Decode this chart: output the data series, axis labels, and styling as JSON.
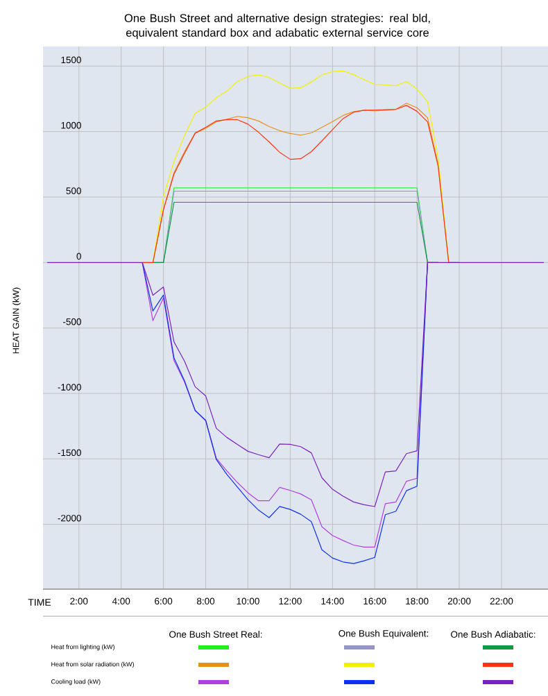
{
  "chart_data": {
    "type": "line",
    "title": "One Bush Street and alternative design strategies: real bld, equivalent standard box and adabatic external service core",
    "xlabel": "TIME",
    "ylabel": "HEAT GAIN (kW)",
    "annotations": [
      "One Bush Street Real:",
      "One Bush Equivalent:",
      "One Bush Adiabatic:",
      "Heat from lighting (kW)",
      "Heat from solar radiation (kW)",
      "Cooling load (kW)"
    ],
    "x": [
      0.5,
      1,
      1.5,
      2,
      2.5,
      3,
      3.5,
      4,
      4.5,
      5,
      5.5,
      6,
      6.5,
      7,
      7.5,
      8,
      8.5,
      9,
      9.5,
      10,
      10.5,
      11,
      11.5,
      12,
      12.5,
      13,
      13.5,
      14,
      14.5,
      15,
      15.5,
      16,
      16.5,
      17,
      17.5,
      18,
      18.5,
      19,
      19.5,
      20,
      20.5,
      21,
      21.5,
      22,
      22.5,
      23,
      23.5,
      24
    ],
    "series": [
      {
        "color": "#22ee22",
        "values": [
          null,
          null,
          null,
          null,
          null,
          null,
          null,
          null,
          null,
          null,
          0,
          0,
          570,
          570,
          570,
          570,
          570,
          570,
          570,
          570,
          570,
          570,
          570,
          570,
          570,
          570,
          570,
          570,
          570,
          570,
          570,
          570,
          570,
          570,
          570,
          570,
          0,
          0,
          null,
          null,
          null,
          null,
          null,
          null,
          null,
          null,
          null,
          null
        ]
      },
      {
        "color": "#e8901c",
        "values": [
          null,
          null,
          null,
          null,
          null,
          null,
          null,
          null,
          null,
          0,
          0,
          404,
          687,
          847,
          988,
          1025,
          1074,
          1094,
          1116,
          1106,
          1081,
          1039,
          1007,
          985,
          973,
          990,
          1032,
          1076,
          1123,
          1153,
          1163,
          1158,
          1163,
          1170,
          1217,
          1182,
          1106,
          749,
          0,
          0,
          null,
          null,
          null,
          null,
          null,
          null,
          null,
          null
        ]
      },
      {
        "color": "#b040e0",
        "values": [
          null,
          null,
          null,
          null,
          null,
          null,
          null,
          null,
          null,
          0,
          -444,
          -271,
          -750,
          -914,
          -1130,
          -1204,
          -1495,
          -1592,
          -1680,
          -1759,
          -1820,
          -1820,
          -1718,
          -1741,
          -1768,
          -1812,
          -2018,
          -2085,
          -2123,
          -2158,
          -2173,
          -2173,
          -1842,
          -1829,
          -1671,
          -1648,
          0,
          null,
          null,
          null,
          null,
          null,
          null,
          null,
          null,
          null,
          null,
          null
        ]
      },
      {
        "color": "#9494c8",
        "values": [
          null,
          null,
          null,
          null,
          null,
          null,
          null,
          null,
          null,
          null,
          0,
          0,
          545,
          545,
          545,
          545,
          545,
          545,
          545,
          545,
          545,
          545,
          545,
          545,
          545,
          545,
          545,
          545,
          545,
          545,
          545,
          545,
          545,
          545,
          545,
          545,
          0,
          0,
          null,
          null,
          null,
          null,
          null,
          null,
          null,
          null,
          null,
          null
        ]
      },
      {
        "color": "#f5f000",
        "values": [
          null,
          null,
          null,
          null,
          null,
          null,
          null,
          null,
          null,
          0,
          0,
          500,
          773,
          970,
          1138,
          1187,
          1259,
          1310,
          1384,
          1421,
          1433,
          1414,
          1372,
          1330,
          1335,
          1379,
          1433,
          1458,
          1463,
          1436,
          1397,
          1360,
          1357,
          1350,
          1382,
          1325,
          1229,
          798,
          0,
          0,
          null,
          null,
          null,
          null,
          null,
          null,
          null,
          null
        ]
      },
      {
        "color": "#1030f0",
        "values": [
          null,
          null,
          null,
          null,
          null,
          null,
          null,
          null,
          null,
          0,
          -370,
          -248,
          -729,
          -905,
          -1130,
          -1208,
          -1504,
          -1618,
          -1715,
          -1812,
          -1891,
          -1949,
          -1863,
          -1886,
          -1923,
          -1979,
          -2194,
          -2257,
          -2287,
          -2299,
          -2278,
          -2252,
          -1926,
          -1900,
          -1743,
          -1709,
          0,
          null,
          null,
          null,
          null,
          null,
          null,
          null,
          null,
          null,
          null,
          null
        ]
      },
      {
        "color": "#119944",
        "values": [
          null,
          null,
          null,
          null,
          null,
          null,
          null,
          null,
          null,
          null,
          0,
          0,
          460,
          460,
          460,
          460,
          460,
          460,
          460,
          460,
          460,
          460,
          460,
          460,
          460,
          460,
          460,
          460,
          460,
          460,
          460,
          460,
          460,
          460,
          460,
          460,
          0,
          0,
          null,
          null,
          null,
          null,
          null,
          null,
          null,
          null,
          null,
          null
        ]
      },
      {
        "color": "#ff3311",
        "values": [
          null,
          null,
          null,
          null,
          null,
          null,
          null,
          null,
          null,
          0,
          0,
          404,
          675,
          835,
          988,
          1032,
          1081,
          1091,
          1091,
          1057,
          995,
          921,
          842,
          788,
          793,
          847,
          929,
          1015,
          1099,
          1148,
          1163,
          1165,
          1167,
          1170,
          1200,
          1155,
          1074,
          736,
          0,
          0,
          null,
          null,
          null,
          null,
          null,
          null,
          null,
          null
        ]
      },
      {
        "color": "#7a22c0",
        "values": [
          0,
          0,
          0,
          0,
          0,
          0,
          0,
          0,
          0,
          0,
          -250,
          -187,
          -606,
          -755,
          -949,
          -1019,
          -1266,
          -1336,
          -1389,
          -1442,
          -1468,
          -1491,
          -1386,
          -1389,
          -1407,
          -1454,
          -1644,
          -1732,
          -1785,
          -1829,
          -1850,
          -1864,
          -1600,
          -1592,
          -1460,
          -1438,
          0,
          0,
          0,
          0,
          0,
          0,
          0,
          0,
          0,
          0,
          0,
          0
        ]
      }
    ],
    "xlim": [
      0.3,
      24.2
    ],
    "ylim": [
      -2500,
      1650
    ],
    "xticks": [
      {
        "value": 2,
        "label": "2:00"
      },
      {
        "value": 4,
        "label": "4:00"
      },
      {
        "value": 6,
        "label": "6:00"
      },
      {
        "value": 8,
        "label": "8:00"
      },
      {
        "value": 10,
        "label": "10:00"
      },
      {
        "value": 12,
        "label": "12:00"
      },
      {
        "value": 14,
        "label": "14:00"
      },
      {
        "value": 16,
        "label": "16:00"
      },
      {
        "value": 18,
        "label": "18:00"
      },
      {
        "value": 20,
        "label": "20:00"
      },
      {
        "value": 22,
        "label": "22:00"
      }
    ],
    "yticks": [
      -2000,
      -1500,
      -1000,
      -500,
      0,
      500,
      1000,
      1500
    ],
    "grid": true,
    "marker": "none",
    "line_style": "solid"
  }
}
